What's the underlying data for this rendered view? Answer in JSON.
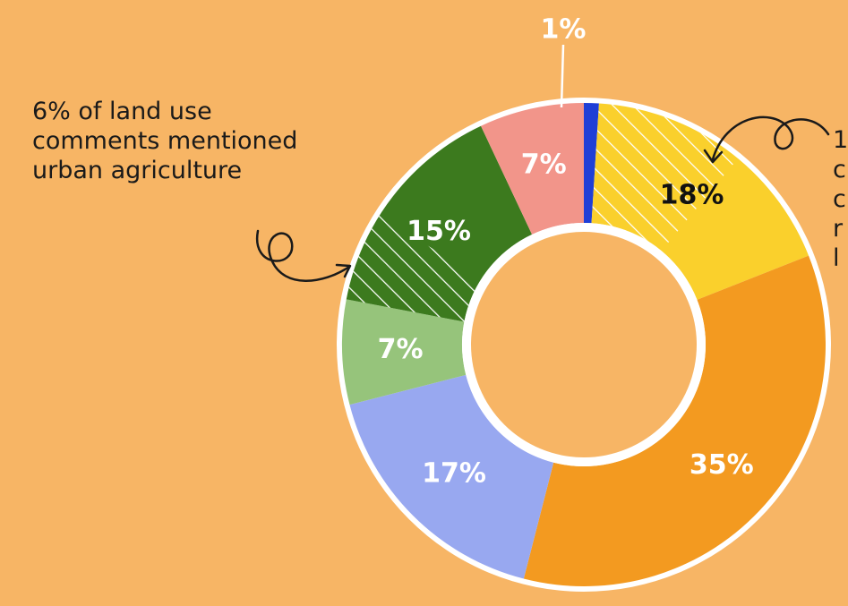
{
  "annotation_left": [
    "6% of land use",
    "comments mentioned",
    "urban agriculture"
  ],
  "annotation_right_partial": [
    "1",
    "c",
    "c",
    "r",
    "l"
  ],
  "colors": {
    "background": "#F7B565",
    "ring_border": "#FFFFFF",
    "blue": "#1F3FD6",
    "yellow": "#FAD02C",
    "orange": "#F39A20",
    "periwinkle": "#98A8F0",
    "light_green": "#96C47B",
    "dark_green": "#3C7A1E",
    "pink": "#F2958A",
    "hatch": "#FFFFFF"
  },
  "chart_data": {
    "type": "pie",
    "variant": "donut",
    "direction": "clockwise from top",
    "slices": [
      {
        "label": "1%",
        "value": 1,
        "color": "blue",
        "label_color": "#FFFFFF"
      },
      {
        "label": "18%",
        "value": 18,
        "color": "yellow",
        "label_color": "#111111",
        "hatched_value": 10
      },
      {
        "label": "35%",
        "value": 35,
        "color": "orange",
        "label_color": "#FFFFFF"
      },
      {
        "label": "17%",
        "value": 17,
        "color": "periwinkle",
        "label_color": "#FFFFFF"
      },
      {
        "label": "7%",
        "value": 7,
        "color": "light_green",
        "label_color": "#FFFFFF"
      },
      {
        "label": "15%",
        "value": 15,
        "color": "dark_green",
        "label_color": "#FFFFFF",
        "hatched_value": 6
      },
      {
        "label": "7%",
        "value": 7,
        "color": "pink",
        "label_color": "#FFFFFF"
      }
    ]
  }
}
